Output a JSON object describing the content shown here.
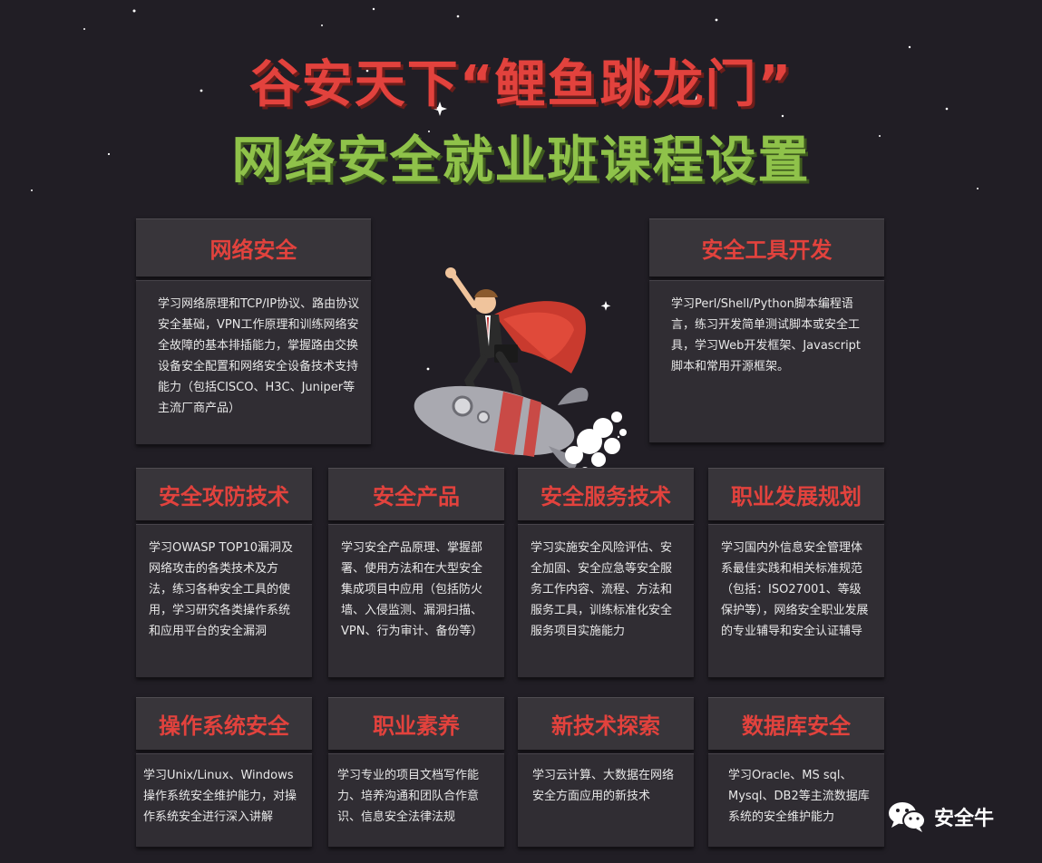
{
  "title": {
    "line1": "谷安天下“鲤鱼跳龙门”",
    "line2": "网络安全就业班课程设置"
  },
  "colors": {
    "background": "#211e25",
    "accent_red": "#e2423d",
    "accent_green": "#8fc24a",
    "card_head": "#38353a",
    "card_body": "#302d33"
  },
  "cards": [
    {
      "title": "网络安全",
      "text": "学习网络原理和TCP/IP协议、路由协议安全基础，VPN工作原理和训练网络安全故障的基本排插能力，掌握路由交换设备安全配置和网络安全设备技术支持能力（包括CISCO、H3C、Juniper等主流厂商产品）"
    },
    {
      "title": "安全工具开发",
      "text": "学习Perl/Shell/Python脚本编程语言，练习开发简单测试脚本或安全工具，学习Web开发框架、Javascript脚本和常用开源框架。"
    },
    {
      "title": "安全攻防技术",
      "text": "学习OWASP TOP10漏洞及网络攻击的各类技术及方法，练习各种安全工具的使用，学习研究各类操作系统和应用平台的安全漏洞"
    },
    {
      "title": "安全产品",
      "text": "学习安全产品原理、掌握部署、使用方法和在大型安全集成项目中应用（包括防火墙、入侵监测、漏洞扫描、VPN、行为审计、备份等）"
    },
    {
      "title": "安全服务技术",
      "text": "学习实施安全风险评估、安全加固、安全应急等安全服务工作内容、流程、方法和服务工具，训练标准化安全服务项目实施能力"
    },
    {
      "title": "职业发展规划",
      "text": "学习国内外信息安全管理体系最佳实践和相关标准规范（包括：ISO27001、等级保护等），网络安全职业发展的专业辅导和安全认证辅导"
    },
    {
      "title": "操作系统安全",
      "text": "学习Unix/Linux、Windows操作系统安全维护能力，对操作系统安全进行深入讲解"
    },
    {
      "title": "职业素养",
      "text": "学习专业的项目文档写作能力、培养沟通和团队合作意识、信息安全法律法规"
    },
    {
      "title": "新技术探索",
      "text": "学习云计算、大数据在网络安全方面应用的新技术"
    },
    {
      "title": "数据库安全",
      "text": "学习Oracle、MS sql、Mysql、DB2等主流数据库系统的安全维护能力"
    }
  ],
  "watermark": {
    "icon": "wechat-icon",
    "name": "安全牛"
  },
  "illustration": {
    "icon": "superhero-on-rocket-icon"
  }
}
